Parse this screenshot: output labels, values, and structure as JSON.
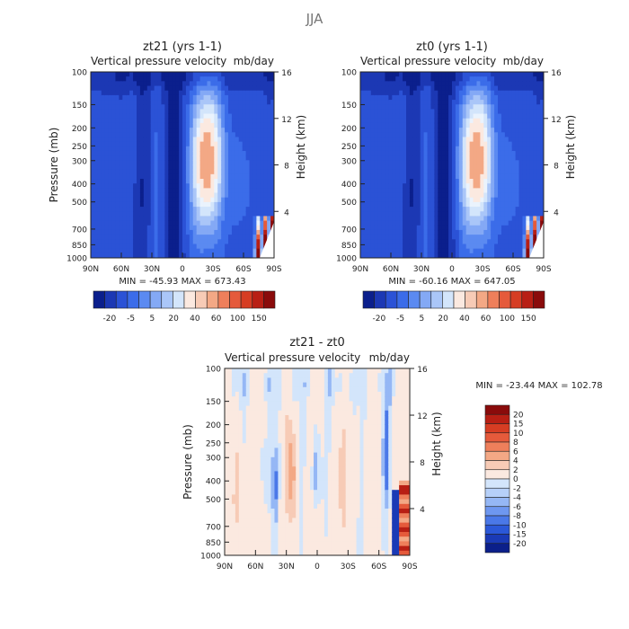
{
  "title": "JJA",
  "colors": {
    "pos": [
      "#fbe9e0",
      "#f7cbb6",
      "#f3a885",
      "#ee7f5b",
      "#e55a3b",
      "#d63d23",
      "#b81f14",
      "#8a0b0b"
    ],
    "neg_bar": [
      "#0b1f8c",
      "#1c38b4",
      "#2b52d6",
      "#3b6ce9",
      "#5b8af1",
      "#84a9f5",
      "#aac6f8",
      "#d3e5fb"
    ],
    "neg_diff": [
      "#d3e5fb",
      "#b6d0f9",
      "#95b7f5",
      "#6e97f0",
      "#4a78e8",
      "#2b58d8",
      "#1a3ab6",
      "#0b1f8a"
    ]
  },
  "chart_data": [
    {
      "type": "heatmap",
      "title": "zt21 (yrs 1-1)",
      "subtitle_left": "Vertical pressure velocity",
      "subtitle_right": "mb/day",
      "ylabel": "Pressure (mb)",
      "y2label": "Height (km)",
      "x_ticks": [
        "90N",
        "60N",
        "30N",
        "0",
        "30S",
        "60S",
        "90S"
      ],
      "y_ticks": [
        "100",
        "150",
        "200",
        "250",
        "300",
        "400",
        "500",
        "700",
        "850",
        "1000"
      ],
      "y_values": [
        100,
        150,
        200,
        250,
        300,
        400,
        500,
        700,
        850,
        1000
      ],
      "y2_ticks": [
        "16",
        "12",
        "8",
        "4"
      ],
      "y2_values_km": [
        16,
        12,
        8,
        4
      ],
      "stats": "MIN = -45.93   MAX = 673.43",
      "min": -45.93,
      "max": 673.43,
      "colorbar": {
        "orientation": "horizontal",
        "labels": [
          "-20",
          "-5",
          "5",
          "20",
          "40",
          "60",
          "100",
          "150"
        ],
        "levels": [
          -25,
          -20,
          -15,
          -10,
          -5,
          0,
          5,
          10,
          20,
          30,
          40,
          50,
          60,
          80,
          100,
          125,
          150
        ]
      }
    },
    {
      "type": "heatmap",
      "title": "zt0 (yrs 1-1)",
      "subtitle_left": "Vertical pressure velocity",
      "subtitle_right": "mb/day",
      "ylabel": "",
      "y2label": "Height (km)",
      "x_ticks": [
        "90N",
        "60N",
        "30N",
        "0",
        "30S",
        "60S",
        "90S"
      ],
      "y_ticks": [
        "100",
        "150",
        "200",
        "250",
        "300",
        "400",
        "500",
        "700",
        "850",
        "1000"
      ],
      "y_values": [
        100,
        150,
        200,
        250,
        300,
        400,
        500,
        700,
        850,
        1000
      ],
      "y2_ticks": [
        "16",
        "12",
        "8",
        "4"
      ],
      "y2_values_km": [
        16,
        12,
        8,
        4
      ],
      "stats": "MIN = -60.16   MAX = 647.05",
      "min": -60.16,
      "max": 647.05,
      "colorbar": {
        "orientation": "horizontal",
        "labels": [
          "-20",
          "-5",
          "5",
          "20",
          "40",
          "60",
          "100",
          "150"
        ],
        "levels": [
          -25,
          -20,
          -15,
          -10,
          -5,
          0,
          5,
          10,
          20,
          30,
          40,
          50,
          60,
          80,
          100,
          125,
          150
        ]
      }
    },
    {
      "type": "heatmap",
      "title": "zt21 - zt0",
      "subtitle_left": "Vertical pressure velocity",
      "subtitle_right": "mb/day",
      "ylabel": "Pressure (mb)",
      "y2label": "Height (km)",
      "x_ticks": [
        "90N",
        "60N",
        "30N",
        "0",
        "30S",
        "60S",
        "90S"
      ],
      "y_ticks": [
        "100",
        "150",
        "200",
        "250",
        "300",
        "400",
        "500",
        "700",
        "850",
        "1000"
      ],
      "y_values": [
        100,
        150,
        200,
        250,
        300,
        400,
        500,
        700,
        850,
        1000
      ],
      "y2_ticks": [
        "16",
        "12",
        "8",
        "4"
      ],
      "y2_values_km": [
        16,
        12,
        8,
        4
      ],
      "stats": "MIN = -23.44   MAX = 102.78",
      "min": -23.44,
      "max": 102.78,
      "colorbar": {
        "orientation": "vertical",
        "labels": [
          "20",
          "15",
          "10",
          "8",
          "6",
          "4",
          "2",
          "0",
          "-2",
          "-4",
          "-6",
          "-8",
          "-10",
          "-15",
          "-20"
        ]
      }
    }
  ]
}
